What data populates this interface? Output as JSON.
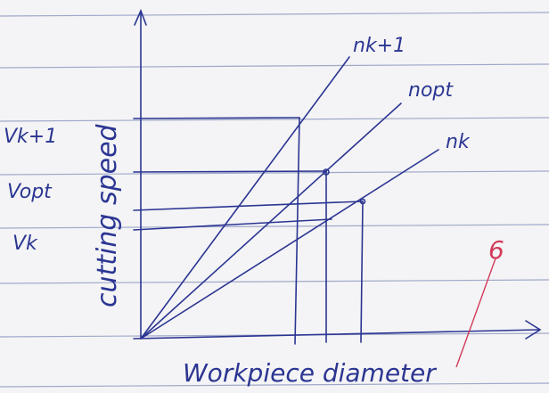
{
  "axes": {
    "y_title": "cutting speed",
    "x_title": "Workpiece diameter"
  },
  "speed_labels": [
    "Vk+1",
    "Vopt",
    "Vk"
  ],
  "line_labels": [
    "nk+1",
    "nopt",
    "nk"
  ],
  "annotation": "6"
}
